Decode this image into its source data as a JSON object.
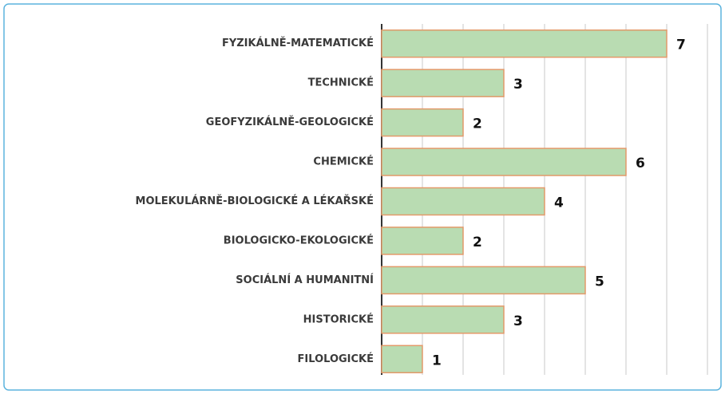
{
  "chart_data": {
    "type": "bar",
    "orientation": "horizontal",
    "categories": [
      "FYZIKÁLNĚ-MATEMATICKÉ",
      "TECHNICKÉ",
      "GEOFYZIKÁLNĚ-GEOLOGICKÉ",
      "CHEMICKÉ",
      "MOLEKULÁRNĚ-BIOLOGICKÉ A LÉKAŘSKÉ",
      "BIOLOGICKO-EKOLOGICKÉ",
      "SOCIÁLNÍ A HUMANITNÍ",
      "HISTORICKÉ",
      "FILOLOGICKÉ"
    ],
    "values": [
      7,
      3,
      2,
      6,
      4,
      2,
      5,
      3,
      1
    ],
    "color": "#b9dcb2",
    "edge_color": "#e39a6a",
    "xlim": [
      0,
      8
    ],
    "xticks": [
      0,
      1,
      2,
      3,
      4,
      5,
      6,
      7,
      8
    ],
    "grid": true
  }
}
